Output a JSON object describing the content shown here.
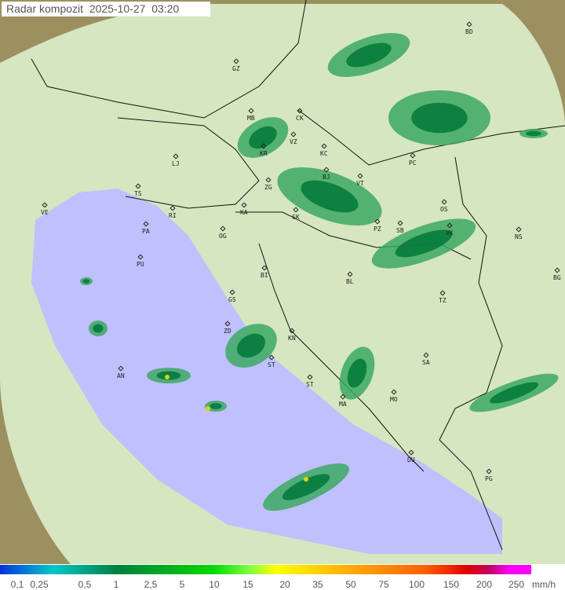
{
  "title": "Radar kompozit  2025-10-27  03:20",
  "legend": {
    "unit": "mm/h",
    "labels": [
      "0,1",
      "0,25",
      "0,5",
      "1",
      "2,5",
      "5",
      "10",
      "15",
      "20",
      "35",
      "50",
      "75",
      "100",
      "150",
      "200",
      "250"
    ]
  },
  "colors": {
    "sea": "#c0c0ff",
    "radar_land": "#dfeec7",
    "outside": "#a89a60",
    "echo_light": "#3ca860",
    "echo_dark": "#007838",
    "echo_core": "#d8d800"
  },
  "cities": [
    "GZ",
    "BD",
    "MB",
    "CK",
    "VZ",
    "KR",
    "LJ",
    "KC",
    "PC",
    "VT",
    "BJ",
    "ZG",
    "TS",
    "VE",
    "KA",
    "SK",
    "RI",
    "OS",
    "PA",
    "OG",
    "SB",
    "VK",
    "NS",
    "PZ",
    "PU",
    "BI",
    "BL",
    "BG",
    "GS",
    "TZ",
    "ZD",
    "KN",
    "SA",
    "ST",
    "AN",
    "ST",
    "MA",
    "MO",
    "DU",
    "PG"
  ]
}
